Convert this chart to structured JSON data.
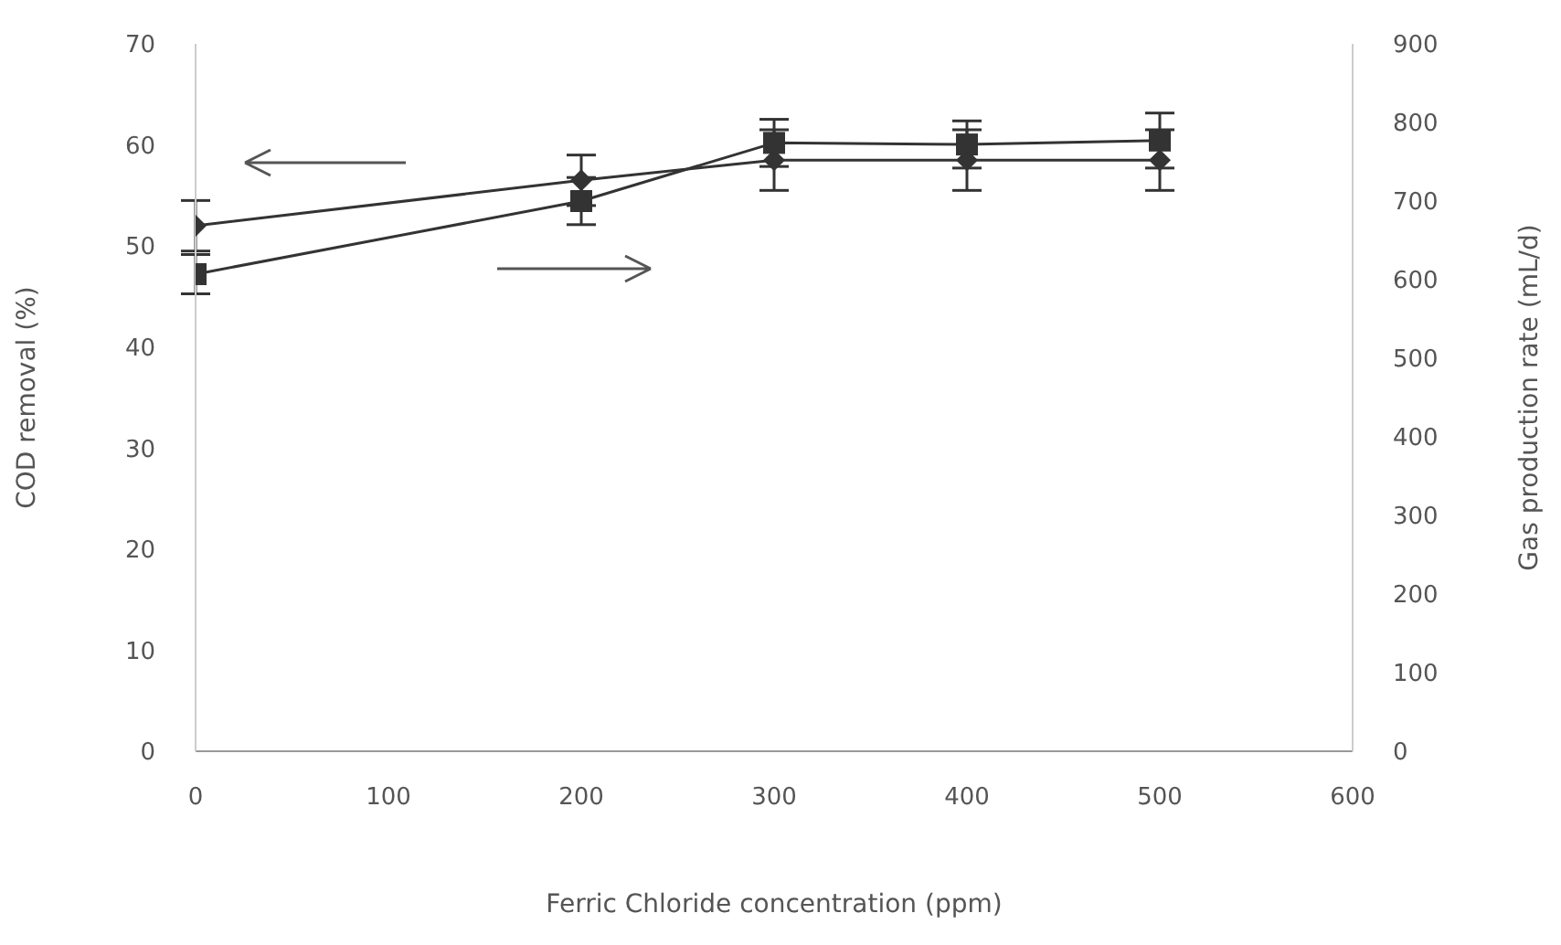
{
  "chart_data": {
    "type": "line",
    "xlabel": "Ferric Chloride concentration (ppm)",
    "ylabel": "COD removal (%)",
    "y2label": "Gas production rate (mL/d)",
    "x": [
      0,
      200,
      300,
      400,
      500
    ],
    "series": [
      {
        "color": "#333333",
        "marker": "diamond",
        "values": [
          52,
          56.5,
          58.5,
          58.5,
          58.5
        ],
        "errors": [
          2.5,
          2.5,
          3,
          3,
          3
        ]
      },
      {
        "color": "#333333",
        "marker": "square",
        "axis": "y2",
        "values": [
          607,
          700,
          774,
          772,
          777
        ],
        "errors": [
          25,
          30,
          30,
          30,
          35
        ]
      }
    ],
    "xlim": [
      0,
      600
    ],
    "xticks": [
      0,
      100,
      200,
      300,
      400,
      500,
      600
    ],
    "ylim": [
      0,
      70
    ],
    "yticks": [
      0,
      10,
      20,
      30,
      40,
      50,
      60,
      70
    ],
    "y2lim": [
      0,
      900
    ],
    "y2ticks": [
      0,
      100,
      200,
      300,
      400,
      500,
      600,
      700,
      800,
      900
    ],
    "line_style": "solid"
  }
}
